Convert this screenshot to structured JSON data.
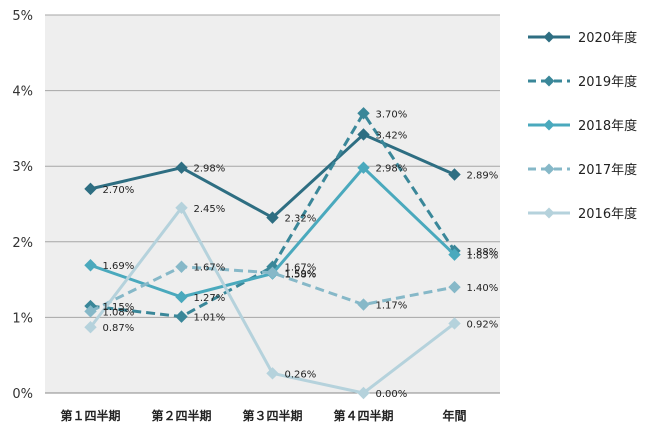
{
  "chart_data": {
    "type": "line",
    "title": "",
    "xlabel": "",
    "ylabel": "",
    "categories": [
      "第１四半期",
      "第２四半期",
      "第３四半期",
      "第４四半期",
      "年間"
    ],
    "y_ticks": [
      "0%",
      "1%",
      "2%",
      "3%",
      "4%",
      "5%"
    ],
    "ylim": [
      0,
      5
    ],
    "grid": true,
    "legend_position": "right",
    "series": [
      {
        "name": "2020年度",
        "values": [
          2.7,
          2.98,
          2.32,
          3.42,
          2.89
        ],
        "labels": [
          "2.70%",
          "2.98%",
          "2.32%",
          "3.42%",
          "2.89%"
        ],
        "color": "#2e6e82",
        "dashed": false
      },
      {
        "name": "2019年度",
        "values": [
          1.15,
          1.01,
          1.67,
          3.7,
          1.88
        ],
        "labels": [
          "1.15%",
          "1.01%",
          "1.67%",
          "3.70%",
          "1.88%"
        ],
        "color": "#3a8799",
        "dashed": true
      },
      {
        "name": "2018年度",
        "values": [
          1.69,
          1.27,
          1.58,
          2.98,
          1.83
        ],
        "labels": [
          "1.69%",
          "1.27%",
          "1.58%",
          "2.98%",
          "1.83%"
        ],
        "color": "#4aa9bd",
        "dashed": false
      },
      {
        "name": "2017年度",
        "values": [
          1.08,
          1.67,
          1.59,
          1.17,
          1.4
        ],
        "labels": [
          "1.08%",
          "1.67%",
          "1.59%",
          "1.17%",
          "1.40%"
        ],
        "color": "#86b8c8",
        "dashed": true
      },
      {
        "name": "2016年度",
        "values": [
          0.87,
          2.45,
          0.26,
          0.0,
          0.92
        ],
        "labels": [
          "0.87%",
          "2.45%",
          "0.26%",
          "0.00%",
          "0.92%"
        ],
        "color": "#b5d2dc",
        "dashed": false
      }
    ]
  }
}
